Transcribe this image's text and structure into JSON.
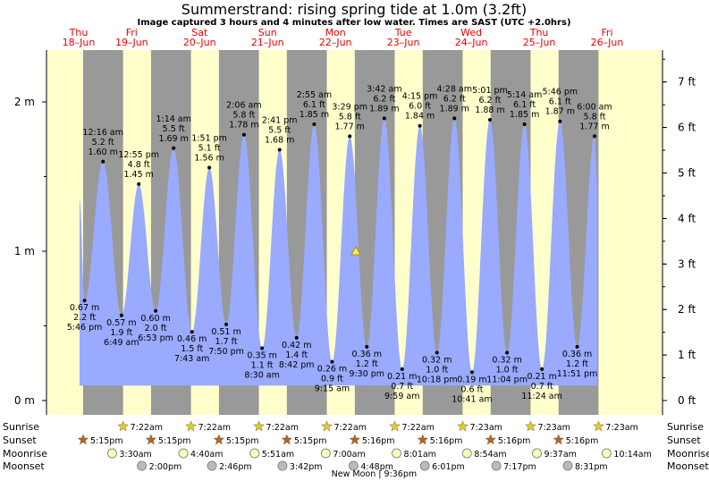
{
  "title": "Summerstrand: rising  spring tide at 1.0m (3.2ft)",
  "subtitle": "Image captured 3 hours and 4 minutes after low water. Times are SAST (UTC +2.0hrs)",
  "colors": {
    "day_bg": "#ffffcc",
    "night_bg": "#999999",
    "tide_fill": "#99aaff",
    "day_label": "#ee0000",
    "sun_star": "#ddcc33",
    "sunset_star": "#aa6633",
    "moon_rise": "#ffffbb",
    "moon_set": "#bbbbbb"
  },
  "days": [
    {
      "dow": "Thu",
      "date": "18–Jun"
    },
    {
      "dow": "Fri",
      "date": "19–Jun"
    },
    {
      "dow": "Sat",
      "date": "20–Jun"
    },
    {
      "dow": "Sun",
      "date": "21–Jun"
    },
    {
      "dow": "Mon",
      "date": "22–Jun"
    },
    {
      "dow": "Tue",
      "date": "23–Jun"
    },
    {
      "dow": "Wed",
      "date": "24–Jun"
    },
    {
      "dow": "Thu",
      "date": "25–Jun"
    },
    {
      "dow": "Fri",
      "date": "26–Jun"
    }
  ],
  "chart_data": {
    "type": "area",
    "title": "Summerstrand: rising  spring tide at 1.0m (3.2ft)",
    "xlabel": "",
    "ylabel_left": "m",
    "ylabel_right": "ft",
    "left_ticks": [
      "0 m",
      "1 m",
      "2 m"
    ],
    "right_ticks": [
      "0 ft",
      "1 ft",
      "2 ft",
      "3 ft",
      "4 ft",
      "5 ft",
      "6 ft",
      "7 ft"
    ],
    "ylim_m": [
      0,
      2.35
    ],
    "current": {
      "height_m": 1.0,
      "marker": "triangle"
    },
    "extremes": [
      {
        "type": "start",
        "day": 0,
        "time": "16:00",
        "m": 1.35
      },
      {
        "type": "low",
        "day": 0,
        "time": "17:46",
        "m": 0.67,
        "label": [
          "0.67 m",
          "2.2 ft",
          "5:46 pm"
        ]
      },
      {
        "type": "high",
        "day": 1,
        "time": "00:16",
        "m": 1.6,
        "label": [
          "12:16 am",
          "5.2 ft",
          "1.60 m"
        ]
      },
      {
        "type": "low",
        "day": 1,
        "time": "06:49",
        "m": 0.57,
        "label": [
          "0.57 m",
          "1.9 ft",
          "6:49 am"
        ]
      },
      {
        "type": "high",
        "day": 1,
        "time": "12:55",
        "m": 1.45,
        "label": [
          "12:55 pm",
          "4.8 ft",
          "1.45 m"
        ]
      },
      {
        "type": "low",
        "day": 1,
        "time": "18:53",
        "m": 0.6,
        "label": [
          "0.60 m",
          "2.0 ft",
          "6:53 pm"
        ]
      },
      {
        "type": "high",
        "day": 2,
        "time": "01:14",
        "m": 1.69,
        "label": [
          "1:14 am",
          "5.5 ft",
          "1.69 m"
        ]
      },
      {
        "type": "low",
        "day": 2,
        "time": "07:43",
        "m": 0.46,
        "label": [
          "0.46 m",
          "1.5 ft",
          "7:43 am"
        ]
      },
      {
        "type": "high",
        "day": 2,
        "time": "13:51",
        "m": 1.56,
        "label": [
          "1:51 pm",
          "5.1 ft",
          "1.56 m"
        ]
      },
      {
        "type": "low",
        "day": 2,
        "time": "19:50",
        "m": 0.51,
        "label": [
          "0.51 m",
          "1.7 ft",
          "7:50 pm"
        ]
      },
      {
        "type": "high",
        "day": 3,
        "time": "02:06",
        "m": 1.78,
        "label": [
          "2:06 am",
          "5.8 ft",
          "1.78 m"
        ]
      },
      {
        "type": "low",
        "day": 3,
        "time": "08:30",
        "m": 0.35,
        "label": [
          "0.35 m",
          "1.1 ft",
          "8:30 am"
        ]
      },
      {
        "type": "high",
        "day": 3,
        "time": "14:41",
        "m": 1.68,
        "label": [
          "2:41 pm",
          "5.5 ft",
          "1.68 m"
        ]
      },
      {
        "type": "low",
        "day": 3,
        "time": "20:42",
        "m": 0.42,
        "label": [
          "0.42 m",
          "1.4 ft",
          "8:42 pm"
        ]
      },
      {
        "type": "high",
        "day": 4,
        "time": "02:55",
        "m": 1.85,
        "label": [
          "2:55 am",
          "6.1 ft",
          "1.85 m"
        ]
      },
      {
        "type": "low",
        "day": 4,
        "time": "09:15",
        "m": 0.26,
        "label": [
          "0.26 m",
          "0.9 ft",
          "9:15 am"
        ]
      },
      {
        "type": "high",
        "day": 4,
        "time": "15:29",
        "m": 1.77,
        "label": [
          "3:29 pm",
          "5.8 ft",
          "1.77 m"
        ]
      },
      {
        "type": "low",
        "day": 4,
        "time": "21:30",
        "m": 0.36,
        "label": [
          "0.36 m",
          "1.2 ft",
          "9:30 pm"
        ]
      },
      {
        "type": "high",
        "day": 5,
        "time": "03:42",
        "m": 1.89,
        "label": [
          "3:42 am",
          "6.2 ft",
          "1.89 m"
        ]
      },
      {
        "type": "low",
        "day": 5,
        "time": "09:59",
        "m": 0.21,
        "label": [
          "0.21 m",
          "0.7 ft",
          "9:59 am"
        ]
      },
      {
        "type": "high",
        "day": 5,
        "time": "16:15",
        "m": 1.84,
        "label": [
          "4:15 pm",
          "6.0 ft",
          "1.84 m"
        ]
      },
      {
        "type": "low",
        "day": 5,
        "time": "22:18",
        "m": 0.32,
        "label": [
          "0.32 m",
          "1.0 ft",
          "10:18 pm"
        ]
      },
      {
        "type": "high",
        "day": 6,
        "time": "04:28",
        "m": 1.89,
        "label": [
          "4:28 am",
          "6.2 ft",
          "1.89 m"
        ]
      },
      {
        "type": "low",
        "day": 6,
        "time": "10:41",
        "m": 0.19,
        "label": [
          "0.19 m",
          "0.6 ft",
          "10:41 am"
        ]
      },
      {
        "type": "high",
        "day": 6,
        "time": "17:01",
        "m": 1.88,
        "label": [
          "5:01 pm",
          "6.2 ft",
          "1.88 m"
        ]
      },
      {
        "type": "low",
        "day": 6,
        "time": "23:04",
        "m": 0.32,
        "label": [
          "0.32 m",
          "1.0 ft",
          "11:04 pm"
        ]
      },
      {
        "type": "high",
        "day": 7,
        "time": "05:14",
        "m": 1.85,
        "label": [
          "5:14 am",
          "6.1 ft",
          "1.85 m"
        ]
      },
      {
        "type": "low",
        "day": 7,
        "time": "11:24",
        "m": 0.21,
        "label": [
          "0.21 m",
          "0.7 ft",
          "11:24 am"
        ]
      },
      {
        "type": "high",
        "day": 7,
        "time": "17:46",
        "m": 1.87,
        "label": [
          "5:46 pm",
          "6.1 ft",
          "1.87 m"
        ]
      },
      {
        "type": "low",
        "day": 7,
        "time": "23:51",
        "m": 0.36,
        "label": [
          "0.36 m",
          "1.2 ft",
          "11:51 pm"
        ]
      },
      {
        "type": "high",
        "day": 8,
        "time": "06:00",
        "m": 1.77,
        "label": [
          "6:00 am",
          "5.8 ft",
          "1.77 m"
        ]
      },
      {
        "type": "end",
        "day": 8,
        "time": "07:00",
        "m": 1.45
      }
    ]
  },
  "rows": {
    "sunrise": {
      "label": "Sunrise",
      "events": [
        {
          "day": 1,
          "time": "07:22",
          "text": "7:22am"
        },
        {
          "day": 2,
          "time": "07:22",
          "text": "7:22am"
        },
        {
          "day": 3,
          "time": "07:22",
          "text": "7:22am"
        },
        {
          "day": 4,
          "time": "07:22",
          "text": "7:22am"
        },
        {
          "day": 5,
          "time": "07:22",
          "text": "7:22am"
        },
        {
          "day": 6,
          "time": "07:23",
          "text": "7:23am"
        },
        {
          "day": 7,
          "time": "07:23",
          "text": "7:23am"
        },
        {
          "day": 8,
          "time": "07:23",
          "text": "7:23am"
        }
      ]
    },
    "sunset": {
      "label": "Sunset",
      "events": [
        {
          "day": 0,
          "time": "17:15",
          "text": "5:15pm"
        },
        {
          "day": 1,
          "time": "17:15",
          "text": "5:15pm"
        },
        {
          "day": 2,
          "time": "17:15",
          "text": "5:15pm"
        },
        {
          "day": 3,
          "time": "17:15",
          "text": "5:15pm"
        },
        {
          "day": 4,
          "time": "17:16",
          "text": "5:16pm"
        },
        {
          "day": 5,
          "time": "17:16",
          "text": "5:16pm"
        },
        {
          "day": 6,
          "time": "17:16",
          "text": "5:16pm"
        },
        {
          "day": 7,
          "time": "17:16",
          "text": "5:16pm"
        }
      ]
    },
    "moonrise": {
      "label": "Moonrise",
      "events": [
        {
          "day": 1,
          "time": "03:30",
          "text": "3:30am"
        },
        {
          "day": 2,
          "time": "04:40",
          "text": "4:40am"
        },
        {
          "day": 3,
          "time": "05:51",
          "text": "5:51am"
        },
        {
          "day": 4,
          "time": "07:00",
          "text": "7:00am"
        },
        {
          "day": 5,
          "time": "08:01",
          "text": "8:01am"
        },
        {
          "day": 6,
          "time": "08:54",
          "text": "8:54am"
        },
        {
          "day": 7,
          "time": "09:37",
          "text": "9:37am"
        },
        {
          "day": 8,
          "time": "10:14",
          "text": "10:14am"
        }
      ]
    },
    "moonset": {
      "label": "Moonset",
      "events": [
        {
          "day": 1,
          "time": "14:00",
          "text": "2:00pm"
        },
        {
          "day": 2,
          "time": "14:46",
          "text": "2:46pm"
        },
        {
          "day": 3,
          "time": "15:42",
          "text": "3:42pm"
        },
        {
          "day": 4,
          "time": "16:48",
          "text": "4:48pm"
        },
        {
          "day": 5,
          "time": "18:01",
          "text": "6:01pm"
        },
        {
          "day": 6,
          "time": "19:17",
          "text": "7:17pm"
        },
        {
          "day": 7,
          "time": "20:31",
          "text": "8:31pm"
        }
      ]
    }
  },
  "moon_phase": {
    "day": 4,
    "time": "21:36",
    "label": "New Moon | 9:36pm"
  }
}
